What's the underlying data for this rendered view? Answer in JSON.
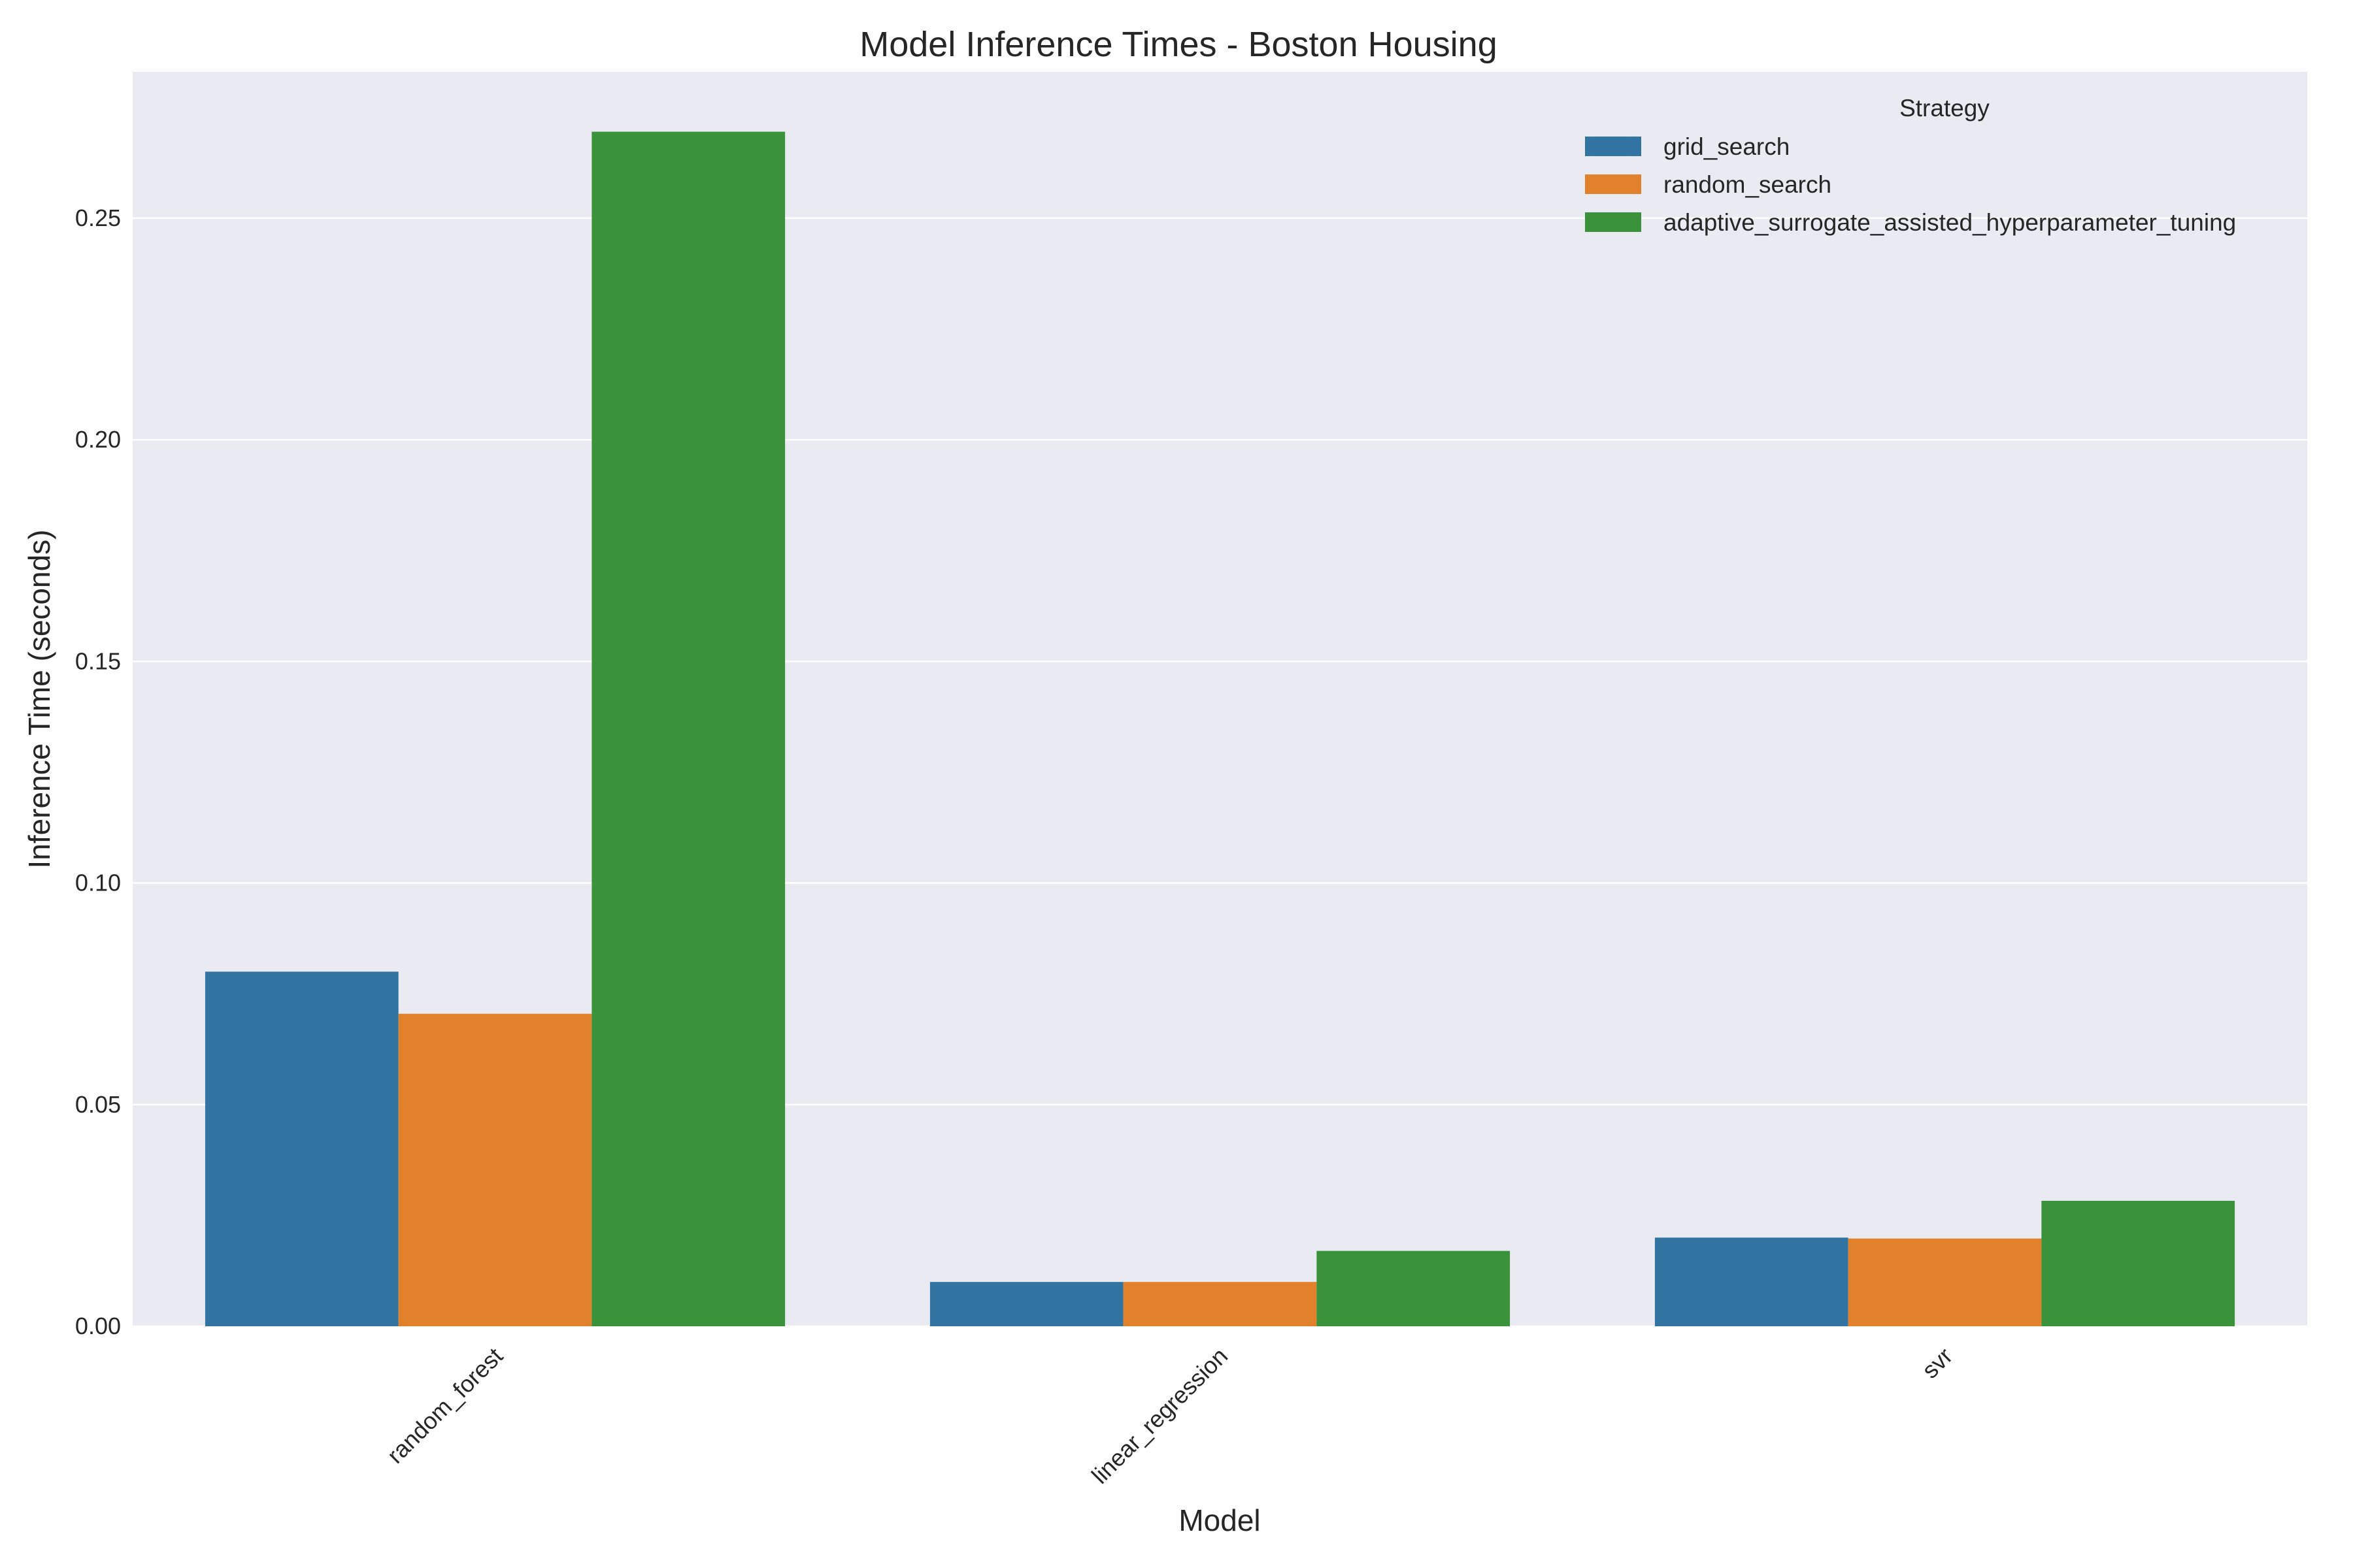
{
  "chart_data": {
    "type": "bar",
    "title": "Model Inference Times - Boston Housing",
    "xlabel": "Model",
    "ylabel": "Inference Time (seconds)",
    "categories": [
      "random_forest",
      "linear_regression",
      "svr"
    ],
    "series": [
      {
        "name": "grid_search",
        "values": [
          0.08,
          0.01,
          0.02
        ],
        "color": "#3274a1"
      },
      {
        "name": "random_search",
        "values": [
          0.0705,
          0.01,
          0.0198
        ],
        "color": "#e1812c"
      },
      {
        "name": "adaptive_surrogate_assisted_hyperparameter_tuning",
        "values": [
          0.2695,
          0.017,
          0.0283
        ],
        "color": "#3a923a"
      }
    ],
    "ylim": [
      0,
      0.283
    ],
    "yticks": [
      0.0,
      0.05,
      0.1,
      0.15,
      0.2,
      0.25
    ],
    "ytick_labels": [
      "0.00",
      "0.05",
      "0.10",
      "0.15",
      "0.20",
      "0.25"
    ],
    "grid": true,
    "legend": {
      "title": "Strategy",
      "placement": "top-right"
    },
    "colors": {
      "plot_background": "#eaeaf2",
      "grid": "#ffffff",
      "text": "#262626"
    }
  }
}
